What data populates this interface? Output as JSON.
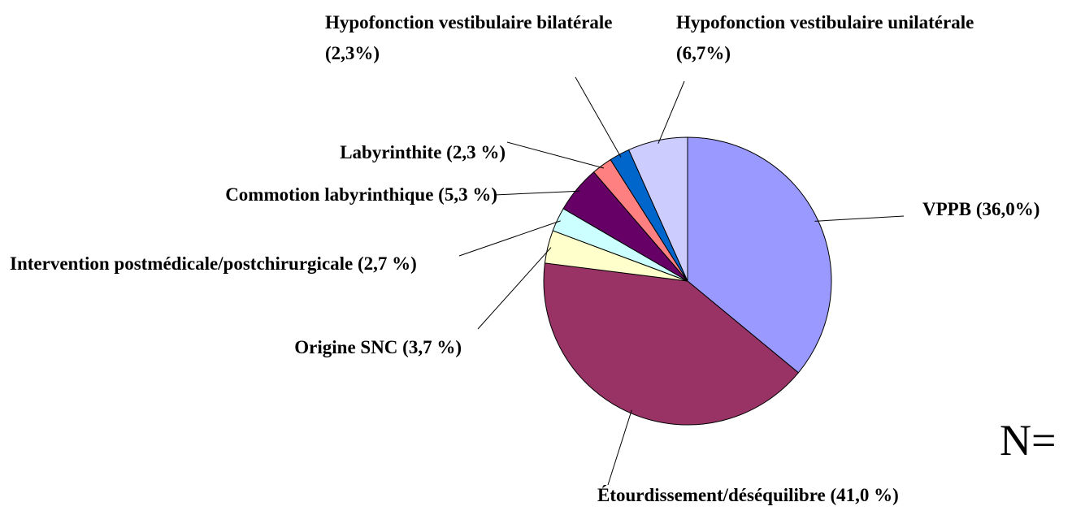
{
  "chart_data": {
    "type": "pie",
    "categories": [
      "VPPB",
      "Étourdissement/déséquilibre",
      "Origine SNC",
      "Intervention postmédicale/postchirurgicale",
      "Commotion labyrinthique",
      "Labyrinthite",
      "Hypofonction vestibulaire bilatérale",
      "Hypofonction vestibulaire unilatérale"
    ],
    "values": [
      36.0,
      41.0,
      3.7,
      2.7,
      5.3,
      2.3,
      2.3,
      6.7
    ],
    "value_labels": [
      "(36,0%)",
      "(41,0 %)",
      "(3,7 %)",
      "(2,7 %)",
      "(5,3 %)",
      "(2,3 %)",
      "(2,3%)",
      "(6,7%)"
    ],
    "colors": [
      "#9999ff",
      "#993366",
      "#ffffcc",
      "#ccffff",
      "#660066",
      "#ff8080",
      "#0066cc",
      "#ccccff"
    ],
    "annotation": "N="
  }
}
